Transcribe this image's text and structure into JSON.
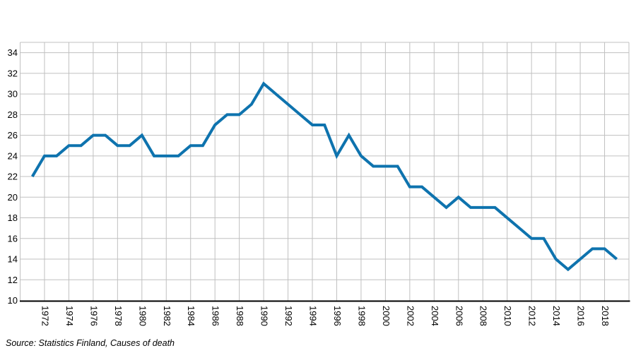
{
  "chart_data": {
    "type": "line",
    "title": "",
    "xlabel": "",
    "ylabel": "",
    "x": [
      1971,
      1972,
      1973,
      1974,
      1975,
      1976,
      1977,
      1978,
      1979,
      1980,
      1981,
      1982,
      1983,
      1984,
      1985,
      1986,
      1987,
      1988,
      1989,
      1990,
      1991,
      1992,
      1993,
      1994,
      1995,
      1996,
      1997,
      1998,
      1999,
      2000,
      2001,
      2002,
      2003,
      2004,
      2005,
      2006,
      2007,
      2008,
      2009,
      2010,
      2011,
      2012,
      2013,
      2014,
      2015,
      2016,
      2017,
      2018,
      2019
    ],
    "values": [
      22,
      24,
      24,
      25,
      25,
      26,
      26,
      25,
      25,
      26,
      24,
      24,
      24,
      25,
      25,
      27,
      28,
      28,
      29,
      31,
      30,
      29,
      28,
      27,
      27,
      24,
      26,
      24,
      23,
      23,
      23,
      21,
      21,
      20,
      19,
      20,
      19,
      19,
      19,
      18,
      17,
      16,
      16,
      14,
      13,
      14,
      15,
      15,
      14
    ],
    "xlim": [
      1970,
      2020
    ],
    "ylim": [
      10,
      35
    ],
    "x_tick_step": 2,
    "y_tick_step": 2,
    "x_tick_labels": [
      "1972",
      "1974",
      "1976",
      "1978",
      "1980",
      "1982",
      "1984",
      "1986",
      "1988",
      "1990",
      "1992",
      "1994",
      "1996",
      "1998",
      "2000",
      "2002",
      "2004",
      "2006",
      "2008",
      "2010",
      "2012",
      "2014",
      "2016",
      "2018"
    ],
    "y_ticks": [
      34,
      32,
      30,
      28,
      26,
      24,
      22,
      20,
      18,
      16,
      14,
      12,
      10
    ],
    "grid": true,
    "legend": "none",
    "line_color": "#0e73ae",
    "grid_color": "#c0c0c0",
    "axis_color": "#000000",
    "tick_label_color": "#000000"
  },
  "source_note": "Source: Statistics Finland, Causes of death"
}
